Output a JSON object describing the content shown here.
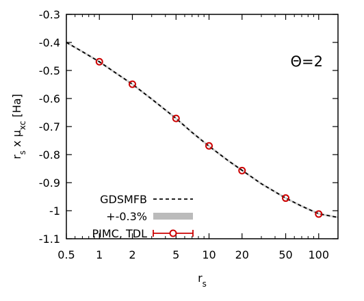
{
  "chart_data": {
    "type": "line",
    "x_scale": "log",
    "xlim": [
      0.5,
      150
    ],
    "ylim": [
      -1.1,
      -0.3
    ],
    "x_ticks": [
      0.5,
      1,
      2,
      5,
      10,
      20,
      50,
      100
    ],
    "x_tick_labels": [
      "0.5",
      "1",
      "2",
      "5",
      "10",
      "20",
      "50",
      "100"
    ],
    "y_ticks": [
      -0.3,
      -0.4,
      -0.5,
      -0.6,
      -0.7,
      -0.8,
      -0.9,
      -1,
      -1.1
    ],
    "y_tick_labels": [
      "-0.3",
      "-0.4",
      "-0.5",
      "-0.6",
      "-0.7",
      "-0.8",
      "-0.9",
      "-1",
      "-1.1"
    ],
    "xlabel": {
      "main": "r",
      "sub": "s"
    },
    "ylabel": {
      "p1": "r",
      "s1": "s",
      "p2": " x μ",
      "s2": "xc",
      "p3": " [Ha]"
    },
    "annotation": "Θ=2",
    "grid": false,
    "legend_position": "bottom-left",
    "series": [
      {
        "name": "GDSMFB",
        "style": "dashed",
        "color": "#000000",
        "x": [
          0.5,
          0.7,
          1,
          1.5,
          2,
          3,
          5,
          7,
          10,
          15,
          20,
          30,
          50,
          70,
          100,
          150
        ],
        "y": [
          -0.4,
          -0.433,
          -0.469,
          -0.516,
          -0.549,
          -0.602,
          -0.671,
          -0.721,
          -0.77,
          -0.822,
          -0.856,
          -0.904,
          -0.955,
          -0.984,
          -1.011,
          -1.024
        ]
      },
      {
        "name": "+-0.3%",
        "style": "band",
        "color": "#bbbbbb",
        "x": [],
        "y": []
      },
      {
        "name": "PIMC, TDL",
        "style": "points-errorbars",
        "color": "#cc0000",
        "x": [
          1,
          2,
          5,
          10,
          20,
          50,
          100
        ],
        "y": [
          -0.469,
          -0.549,
          -0.671,
          -0.769,
          -0.857,
          -0.955,
          -1.012
        ]
      }
    ]
  }
}
